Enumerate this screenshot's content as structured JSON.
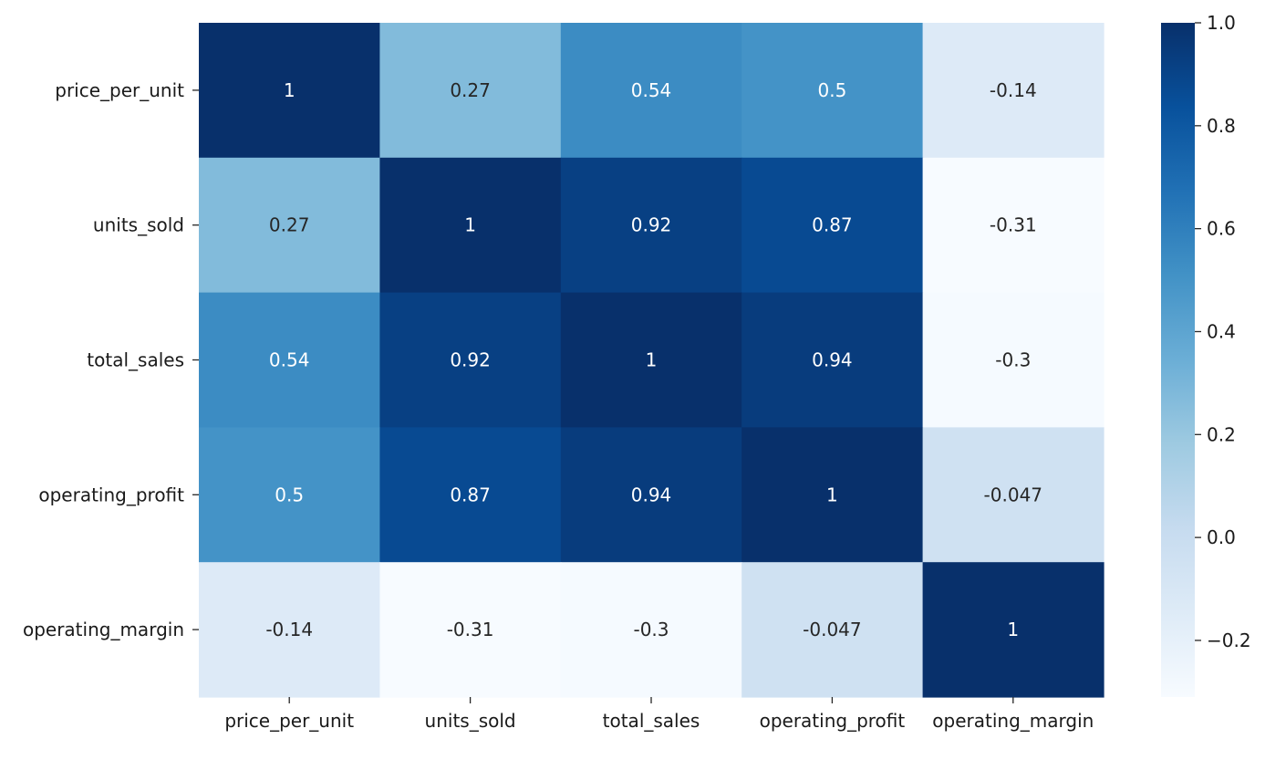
{
  "chart_data": {
    "type": "heatmap",
    "title": "",
    "xlabel": "",
    "ylabel": "",
    "x_labels": [
      "price_per_unit",
      "units_sold",
      "total_sales",
      "operating_profit",
      "operating_margin"
    ],
    "y_labels": [
      "price_per_unit",
      "units_sold",
      "total_sales",
      "operating_profit",
      "operating_margin"
    ],
    "values": [
      [
        1,
        0.27,
        0.54,
        0.5,
        -0.14
      ],
      [
        0.27,
        1,
        0.92,
        0.87,
        -0.31
      ],
      [
        0.54,
        0.92,
        1,
        0.94,
        -0.3
      ],
      [
        0.5,
        0.87,
        0.94,
        1,
        -0.047
      ],
      [
        -0.14,
        -0.31,
        -0.3,
        -0.047,
        1
      ]
    ],
    "annotations": [
      [
        "1",
        "0.27",
        "0.54",
        "0.5",
        "-0.14"
      ],
      [
        "0.27",
        "1",
        "0.92",
        "0.87",
        "-0.31"
      ],
      [
        "0.54",
        "0.92",
        "1",
        "0.94",
        "-0.3"
      ],
      [
        "0.5",
        "0.87",
        "0.94",
        "1",
        "-0.047"
      ],
      [
        "-0.14",
        "-0.31",
        "-0.3",
        "-0.047",
        "1"
      ]
    ],
    "colormap": "Blues",
    "vmin": -0.31,
    "vmax": 1.0,
    "colorbar": {
      "ticks": [
        1.0,
        0.8,
        0.6,
        0.4,
        0.2,
        0.0,
        -0.2
      ],
      "tick_labels": [
        "1.0",
        "0.8",
        "0.6",
        "0.4",
        "0.2",
        "0.0",
        "−0.2"
      ],
      "placement": "right"
    }
  }
}
